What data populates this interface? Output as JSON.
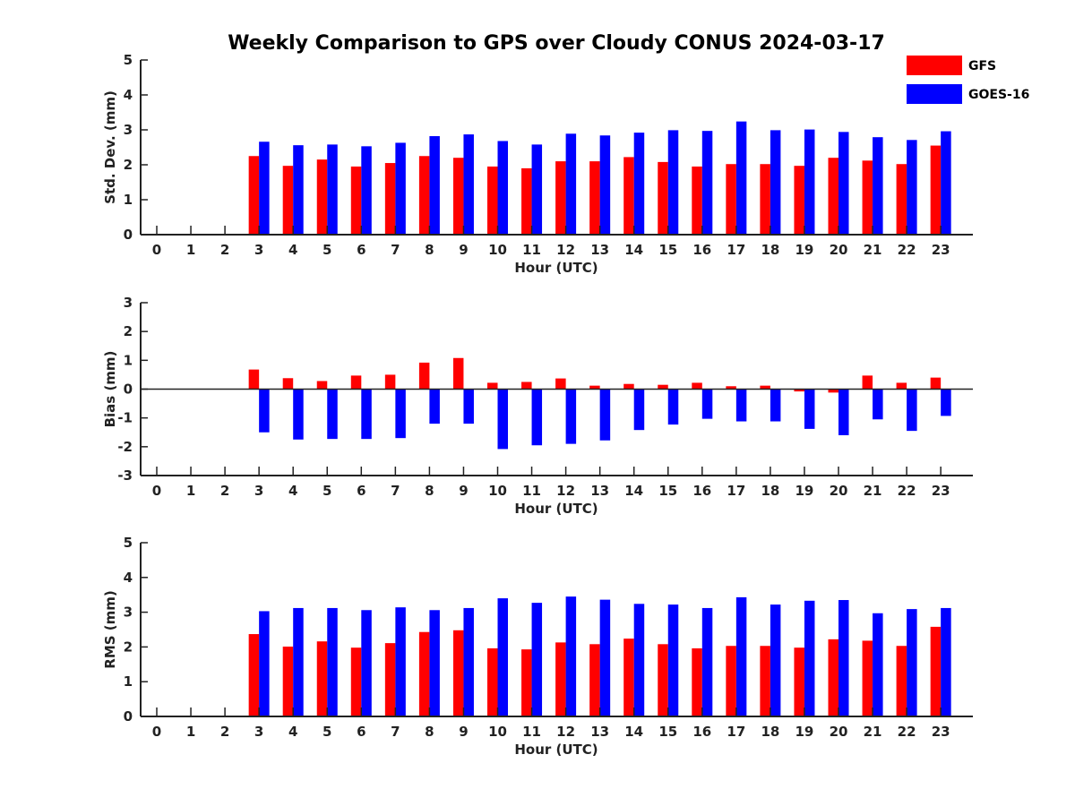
{
  "title": "Weekly Comparison to GPS over Cloudy CONUS 2024-03-17",
  "legend": [
    {
      "name": "GFS",
      "color": "#ff0000"
    },
    {
      "name": "GOES-16",
      "color": "#0000ff"
    }
  ],
  "chart_data": [
    {
      "type": "bar",
      "xlabel": "Hour (UTC)",
      "ylabel": "Std. Dev. (mm)",
      "ylim": [
        0,
        5
      ],
      "yticks": [
        0,
        1,
        2,
        3,
        4,
        5
      ],
      "categories": [
        "0",
        "1",
        "2",
        "3",
        "4",
        "5",
        "6",
        "7",
        "8",
        "9",
        "10",
        "11",
        "12",
        "13",
        "14",
        "15",
        "16",
        "17",
        "18",
        "19",
        "20",
        "21",
        "22",
        "23"
      ],
      "series": [
        {
          "name": "GFS",
          "color": "#ff0000",
          "values": [
            null,
            null,
            null,
            2.25,
            1.97,
            2.15,
            1.95,
            2.05,
            2.25,
            2.2,
            1.95,
            1.9,
            2.1,
            2.1,
            2.22,
            2.08,
            1.95,
            2.02,
            2.02,
            1.97,
            2.2,
            2.12,
            2.02,
            2.55
          ]
        },
        {
          "name": "GOES-16",
          "color": "#0000ff",
          "values": [
            null,
            null,
            null,
            2.66,
            2.56,
            2.58,
            2.53,
            2.63,
            2.82,
            2.87,
            2.68,
            2.58,
            2.89,
            2.84,
            2.92,
            2.99,
            2.97,
            3.24,
            2.99,
            3.01,
            2.94,
            2.79,
            2.71,
            2.96
          ]
        }
      ],
      "legend": "top-right",
      "grid": false
    },
    {
      "type": "bar",
      "xlabel": "Hour (UTC)",
      "ylabel": "Bias (mm)",
      "ylim": [
        -3,
        3
      ],
      "yticks": [
        -3,
        -2,
        -1,
        0,
        1,
        2,
        3
      ],
      "categories": [
        "0",
        "1",
        "2",
        "3",
        "4",
        "5",
        "6",
        "7",
        "8",
        "9",
        "10",
        "11",
        "12",
        "13",
        "14",
        "15",
        "16",
        "17",
        "18",
        "19",
        "20",
        "21",
        "22",
        "23"
      ],
      "series": [
        {
          "name": "GFS",
          "color": "#ff0000",
          "values": [
            null,
            null,
            null,
            0.68,
            0.38,
            0.28,
            0.47,
            0.5,
            0.92,
            1.08,
            0.22,
            0.25,
            0.37,
            0.12,
            0.18,
            0.15,
            0.22,
            0.1,
            0.12,
            -0.08,
            -0.12,
            0.47,
            0.22,
            0.4
          ]
        },
        {
          "name": "GOES-16",
          "color": "#0000ff",
          "values": [
            null,
            null,
            null,
            -1.5,
            -1.75,
            -1.73,
            -1.73,
            -1.7,
            -1.2,
            -1.2,
            -2.08,
            -1.95,
            -1.9,
            -1.78,
            -1.42,
            -1.23,
            -1.03,
            -1.12,
            -1.12,
            -1.38,
            -1.6,
            -1.05,
            -1.45,
            -0.93
          ]
        }
      ],
      "grid": false
    },
    {
      "type": "bar",
      "xlabel": "Hour (UTC)",
      "ylabel": "RMS (mm)",
      "ylim": [
        0,
        5
      ],
      "yticks": [
        0,
        1,
        2,
        3,
        4,
        5
      ],
      "categories": [
        "0",
        "1",
        "2",
        "3",
        "4",
        "5",
        "6",
        "7",
        "8",
        "9",
        "10",
        "11",
        "12",
        "13",
        "14",
        "15",
        "16",
        "17",
        "18",
        "19",
        "20",
        "21",
        "22",
        "23"
      ],
      "series": [
        {
          "name": "GFS",
          "color": "#ff0000",
          "values": [
            null,
            null,
            null,
            2.37,
            2.01,
            2.16,
            1.98,
            2.11,
            2.43,
            2.48,
            1.96,
            1.93,
            2.13,
            2.08,
            2.24,
            2.08,
            1.96,
            2.03,
            2.03,
            1.98,
            2.22,
            2.18,
            2.03,
            2.58
          ]
        },
        {
          "name": "GOES-16",
          "color": "#0000ff",
          "values": [
            null,
            null,
            null,
            3.03,
            3.12,
            3.12,
            3.06,
            3.14,
            3.06,
            3.12,
            3.4,
            3.27,
            3.45,
            3.36,
            3.24,
            3.22,
            3.12,
            3.43,
            3.22,
            3.33,
            3.35,
            2.97,
            3.09,
            3.12
          ]
        }
      ],
      "grid": false
    }
  ]
}
